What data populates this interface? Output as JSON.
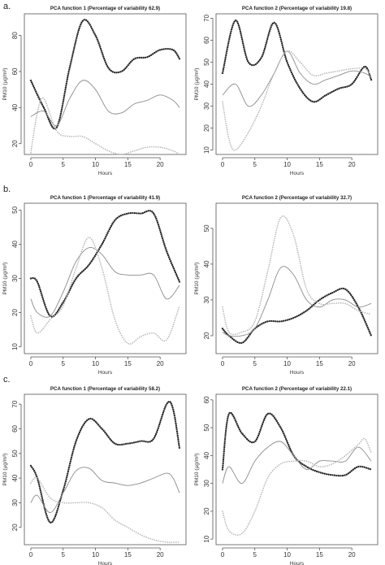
{
  "panel_labels": [
    "a.",
    "b.",
    "c."
  ],
  "chart_data": [
    {
      "type": "line",
      "panel": "a.",
      "title": "PCA function 1 (Percentage of variability 62.9)",
      "xlabel": "Hours",
      "ylabel": "PM10 (µg/m³)",
      "xlim": [
        -1,
        24
      ],
      "ylim": [
        14,
        92
      ],
      "xticks": [
        0,
        5,
        10,
        15,
        20
      ],
      "yticks": [
        20,
        40,
        60,
        80
      ],
      "series": [
        {
          "style": "dotted",
          "x": [
            0,
            2,
            4,
            6,
            8,
            10,
            12,
            14,
            16,
            18,
            20,
            22,
            23
          ],
          "y": [
            55,
            40,
            29,
            62,
            88,
            80,
            62,
            60,
            67,
            68,
            72,
            72,
            67
          ]
        },
        {
          "style": "solid",
          "x": [
            0,
            2,
            4,
            6,
            8,
            10,
            12,
            14,
            16,
            18,
            20,
            22,
            23
          ],
          "y": [
            35,
            38,
            30,
            45,
            55,
            50,
            38,
            37,
            42,
            44,
            47,
            44,
            40
          ]
        },
        {
          "style": "faint",
          "x": [
            0,
            1,
            2,
            4,
            6,
            8,
            10,
            12,
            14,
            16,
            18,
            20,
            22,
            23
          ],
          "y": [
            15,
            37,
            45,
            27,
            24,
            24,
            20,
            16,
            14,
            16,
            18,
            18,
            16,
            14
          ]
        }
      ]
    },
    {
      "type": "line",
      "panel": "a.",
      "title": "PCA function 2 (Percentage of variability 19.8)",
      "xlabel": "Hours",
      "ylabel": "PM10 (µg/m³)",
      "xlim": [
        -1,
        24
      ],
      "ylim": [
        8,
        72
      ],
      "xticks": [
        0,
        5,
        10,
        15,
        20
      ],
      "yticks": [
        10,
        20,
        30,
        40,
        50,
        60,
        70
      ],
      "series": [
        {
          "style": "dotted",
          "x": [
            0,
            2,
            4,
            6,
            8,
            10,
            12,
            14,
            16,
            18,
            20,
            22,
            23
          ],
          "y": [
            45,
            69,
            50,
            52,
            68,
            50,
            38,
            32,
            35,
            38,
            40,
            48,
            42
          ]
        },
        {
          "style": "solid",
          "x": [
            0,
            2,
            4,
            6,
            8,
            10,
            12,
            14,
            16,
            18,
            20,
            22,
            23
          ],
          "y": [
            35,
            40,
            30,
            35,
            45,
            55,
            45,
            40,
            42,
            44,
            46,
            45,
            43
          ]
        },
        {
          "style": "faint",
          "x": [
            0,
            1,
            2,
            4,
            6,
            8,
            10,
            12,
            14,
            16,
            18,
            20,
            22,
            23
          ],
          "y": [
            32,
            15,
            10,
            18,
            30,
            45,
            55,
            50,
            44,
            45,
            46,
            47,
            47,
            44
          ]
        }
      ]
    },
    {
      "type": "line",
      "panel": "b.",
      "title": "PCA function 1 (Percentage of variability 41.9)",
      "xlabel": "Hours",
      "ylabel": "PM10 (µg/m³)",
      "xlim": [
        -1,
        24
      ],
      "ylim": [
        8,
        52
      ],
      "xticks": [
        0,
        5,
        10,
        15,
        20
      ],
      "yticks": [
        10,
        20,
        30,
        40,
        50
      ],
      "series": [
        {
          "style": "dotted",
          "x": [
            0,
            1,
            3,
            5,
            7,
            9,
            11,
            13,
            15,
            17,
            19,
            21,
            23
          ],
          "y": [
            30,
            29,
            19,
            23,
            30,
            34,
            40,
            47,
            49,
            49,
            49,
            38,
            29
          ]
        },
        {
          "style": "solid",
          "x": [
            0,
            1,
            3,
            5,
            7,
            9,
            11,
            13,
            15,
            17,
            19,
            21,
            23
          ],
          "y": [
            24,
            20,
            19,
            26,
            35,
            39,
            37,
            32,
            31,
            31,
            31,
            24,
            28
          ]
        },
        {
          "style": "faint",
          "x": [
            0,
            1,
            3,
            5,
            7,
            9,
            11,
            13,
            15,
            17,
            19,
            21,
            23
          ],
          "y": [
            19,
            14,
            18,
            22,
            33,
            42,
            33,
            18,
            11,
            13,
            14,
            12,
            22
          ]
        }
      ]
    },
    {
      "type": "line",
      "panel": "b.",
      "title": "PCA function 2 (Percentage of variability 32.7)",
      "xlabel": "Hours",
      "ylabel": "PM10 (µg/m³)",
      "xlim": [
        -1,
        24
      ],
      "ylim": [
        15,
        57
      ],
      "xticks": [
        0,
        5,
        10,
        15,
        20
      ],
      "yticks": [
        20,
        30,
        40,
        50
      ],
      "series": [
        {
          "style": "dotted",
          "x": [
            0,
            1,
            3,
            5,
            7,
            9,
            11,
            13,
            15,
            17,
            19,
            21,
            23
          ],
          "y": [
            22,
            20,
            18,
            22,
            24,
            24,
            25,
            27,
            30,
            32,
            33,
            28,
            20
          ]
        },
        {
          "style": "solid",
          "x": [
            0,
            1,
            3,
            5,
            7,
            9,
            11,
            13,
            15,
            17,
            19,
            21,
            23
          ],
          "y": [
            21,
            20,
            20,
            22,
            30,
            39,
            37,
            30,
            28,
            30,
            30,
            28,
            29
          ]
        },
        {
          "style": "faint",
          "x": [
            0,
            1,
            3,
            5,
            7,
            9,
            11,
            13,
            15,
            17,
            19,
            21,
            23
          ],
          "y": [
            28,
            21,
            21,
            24,
            38,
            53,
            48,
            33,
            29,
            29,
            29,
            27,
            26
          ]
        }
      ]
    },
    {
      "type": "line",
      "panel": "c.",
      "title": "PCA function 1 (Percentage of variability 58.2)",
      "xlabel": "Hours",
      "ylabel": "PM10 (µg/m³)",
      "xlim": [
        -1,
        24
      ],
      "ylim": [
        13,
        74
      ],
      "xticks": [
        0,
        5,
        10,
        15,
        20
      ],
      "yticks": [
        20,
        30,
        40,
        50,
        60,
        70
      ],
      "series": [
        {
          "style": "dotted",
          "x": [
            0,
            1,
            3,
            5,
            7,
            9,
            11,
            13,
            15,
            17,
            19,
            21,
            22,
            23
          ],
          "y": [
            45,
            40,
            22,
            35,
            55,
            64,
            60,
            54,
            54,
            55,
            56,
            70,
            68,
            52
          ]
        },
        {
          "style": "solid",
          "x": [
            0,
            1,
            3,
            5,
            7,
            9,
            11,
            13,
            15,
            17,
            19,
            21,
            22,
            23
          ],
          "y": [
            30,
            33,
            26,
            34,
            43,
            44,
            39,
            38,
            37,
            38,
            40,
            42,
            40,
            34
          ]
        },
        {
          "style": "faint",
          "x": [
            0,
            1,
            3,
            5,
            7,
            9,
            11,
            13,
            15,
            17,
            19,
            21,
            22,
            23
          ],
          "y": [
            38,
            40,
            32,
            30,
            30,
            30,
            28,
            23,
            20,
            17,
            15,
            14,
            14,
            14
          ]
        }
      ]
    },
    {
      "type": "line",
      "panel": "c.",
      "title": "PCA function 2 (Percentage of variability 22.1)",
      "xlabel": "Hours",
      "ylabel": "PM10 (µg/m³)",
      "xlim": [
        -1,
        24
      ],
      "ylim": [
        8,
        62
      ],
      "xticks": [
        0,
        5,
        10,
        15,
        20
      ],
      "yticks": [
        10,
        20,
        30,
        40,
        50,
        60
      ],
      "series": [
        {
          "style": "dotted",
          "x": [
            0,
            1,
            3,
            5,
            7,
            9,
            11,
            13,
            15,
            17,
            19,
            21,
            23
          ],
          "y": [
            35,
            55,
            48,
            45,
            55,
            50,
            40,
            36,
            34,
            33,
            33,
            36,
            35
          ]
        },
        {
          "style": "solid",
          "x": [
            0,
            1,
            3,
            5,
            7,
            9,
            11,
            13,
            15,
            17,
            19,
            21,
            23
          ],
          "y": [
            30,
            36,
            30,
            38,
            43,
            45,
            40,
            35,
            38,
            38,
            38,
            43,
            38
          ]
        },
        {
          "style": "faint",
          "x": [
            0,
            1,
            3,
            5,
            7,
            9,
            11,
            13,
            15,
            17,
            19,
            21,
            22,
            23
          ],
          "y": [
            20,
            13,
            12,
            20,
            32,
            37,
            38,
            38,
            36,
            37,
            40,
            44,
            46,
            41
          ]
        }
      ]
    }
  ]
}
